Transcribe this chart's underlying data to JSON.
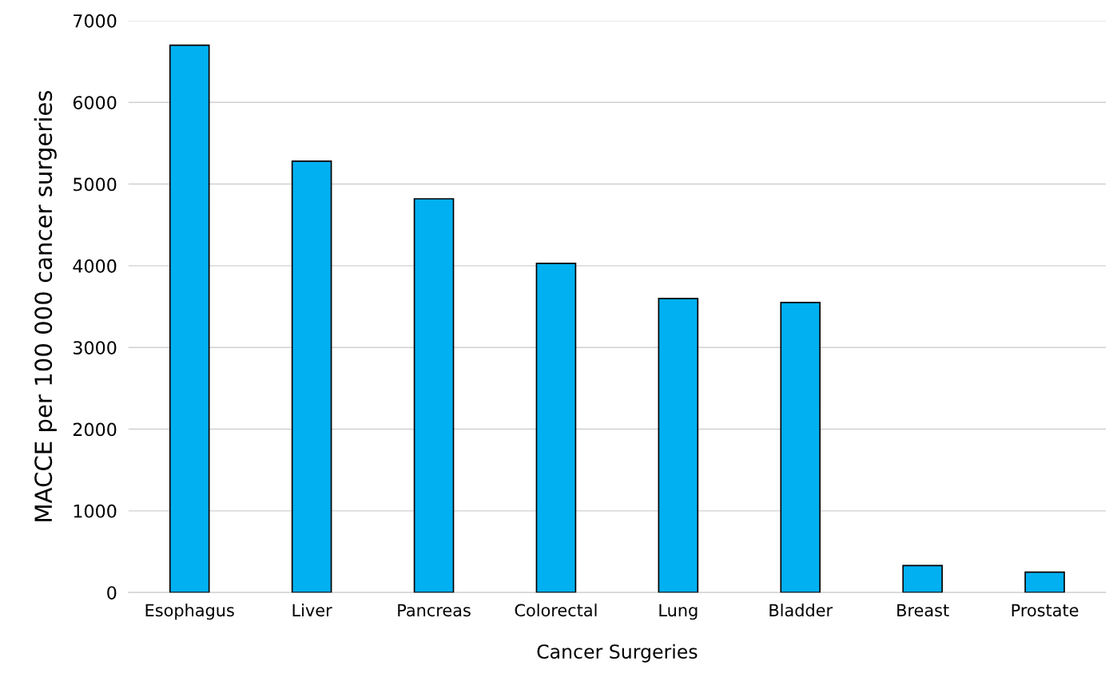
{
  "chart_data": {
    "type": "bar",
    "xlabel": "Cancer Surgeries",
    "ylabel": "MACCE per 100 000 cancer surgeries",
    "categories": [
      "Esophagus",
      "Liver",
      "Pancreas",
      "Colorectal",
      "Lung",
      "Bladder",
      "Breast",
      "Prostate"
    ],
    "values": [
      6700,
      5280,
      4820,
      4030,
      3600,
      3550,
      330,
      250
    ],
    "color": "#00b0f0",
    "ylim": [
      0,
      7000
    ],
    "yticks": [
      0,
      1000,
      2000,
      3000,
      4000,
      5000,
      6000,
      7000
    ],
    "grid": "y"
  }
}
